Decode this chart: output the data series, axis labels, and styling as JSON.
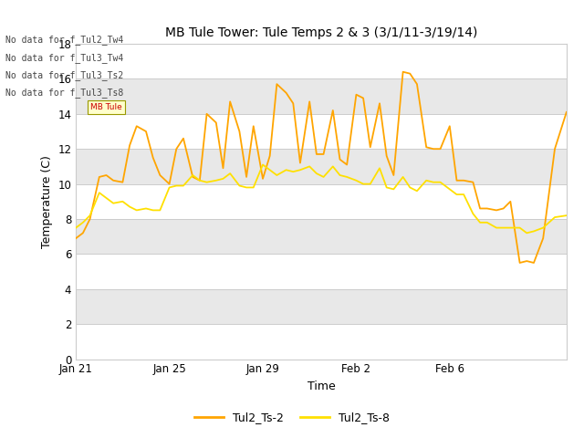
{
  "title": "MB Tule Tower: Tule Temps 2 & 3 (3/1/11-3/19/14)",
  "xlabel": "Time",
  "ylabel": "Temperature (C)",
  "ylim": [
    0,
    18
  ],
  "yticks": [
    0,
    2,
    4,
    6,
    8,
    10,
    12,
    14,
    16,
    18
  ],
  "background_color": "#ffffff",
  "plot_bg_light": "#f0f0f0",
  "plot_bg_dark": "#e0e0e0",
  "no_data_lines": [
    "No data for f_Tul2_Tw4",
    "No data for f_Tul3_Tw4",
    "No data for f_Tul3_Ts2",
    "No data for f_Tul3_Ts8"
  ],
  "legend_entries": [
    "Tul2_Ts-2",
    "Tul2_Ts-8"
  ],
  "line1_color": "#FFA500",
  "line2_color": "#FFE000",
  "xtick_labels": [
    "Jan 21",
    "Jan 25",
    "Jan 29",
    "Feb 2",
    "Feb 6"
  ],
  "xtick_positions": [
    0,
    4,
    8,
    12,
    16
  ],
  "xmax": 21,
  "ts2_x": [
    0,
    0.3,
    0.6,
    1.0,
    1.3,
    1.6,
    2.0,
    2.3,
    2.6,
    3.0,
    3.3,
    3.6,
    4.0,
    4.3,
    4.6,
    5.0,
    5.3,
    5.6,
    6.0,
    6.3,
    6.6,
    7.0,
    7.3,
    7.6,
    8.0,
    8.3,
    8.6,
    9.0,
    9.3,
    9.6,
    10.0,
    10.3,
    10.6,
    11.0,
    11.3,
    11.6,
    12.0,
    12.3,
    12.6,
    13.0,
    13.3,
    13.6,
    14.0,
    14.3,
    14.6,
    15.0,
    15.3,
    15.6,
    16.0,
    16.3,
    16.6,
    17.0,
    17.3,
    17.6,
    18.0,
    18.3,
    18.6,
    19.0,
    19.3,
    19.6,
    20.0,
    20.5,
    21.0
  ],
  "ts2_y": [
    6.9,
    7.2,
    8.0,
    10.4,
    10.5,
    10.2,
    10.1,
    12.2,
    13.3,
    13.0,
    11.5,
    10.5,
    10.0,
    12.0,
    12.6,
    10.4,
    10.2,
    14.0,
    13.5,
    10.9,
    14.7,
    13.0,
    10.4,
    13.3,
    10.3,
    11.6,
    15.7,
    15.2,
    14.6,
    11.2,
    14.7,
    11.7,
    11.7,
    14.2,
    11.4,
    11.1,
    15.1,
    14.9,
    12.1,
    14.6,
    11.6,
    10.5,
    16.4,
    16.3,
    15.7,
    12.1,
    12.0,
    12.0,
    13.3,
    10.2,
    10.2,
    10.1,
    8.6,
    8.6,
    8.5,
    8.6,
    9.0,
    5.5,
    5.6,
    5.5,
    6.9,
    12.0,
    14.1
  ],
  "ts8_x": [
    0,
    0.3,
    0.6,
    1.0,
    1.3,
    1.6,
    2.0,
    2.3,
    2.6,
    3.0,
    3.3,
    3.6,
    4.0,
    4.3,
    4.6,
    5.0,
    5.3,
    5.6,
    6.0,
    6.3,
    6.6,
    7.0,
    7.3,
    7.6,
    8.0,
    8.3,
    8.6,
    9.0,
    9.3,
    9.6,
    10.0,
    10.3,
    10.6,
    11.0,
    11.3,
    11.6,
    12.0,
    12.3,
    12.6,
    13.0,
    13.3,
    13.6,
    14.0,
    14.3,
    14.6,
    15.0,
    15.3,
    15.6,
    16.0,
    16.3,
    16.6,
    17.0,
    17.3,
    17.6,
    18.0,
    18.3,
    18.6,
    19.0,
    19.3,
    19.6,
    20.0,
    20.5,
    21.0
  ],
  "ts8_y": [
    7.5,
    7.8,
    8.2,
    9.5,
    9.2,
    8.9,
    9.0,
    8.7,
    8.5,
    8.6,
    8.5,
    8.5,
    9.8,
    9.9,
    9.9,
    10.5,
    10.2,
    10.1,
    10.2,
    10.3,
    10.6,
    9.9,
    9.8,
    9.8,
    11.1,
    10.8,
    10.5,
    10.8,
    10.7,
    10.8,
    11.0,
    10.6,
    10.4,
    11.0,
    10.5,
    10.4,
    10.2,
    10.0,
    10.0,
    10.9,
    9.8,
    9.7,
    10.4,
    9.8,
    9.6,
    10.2,
    10.1,
    10.1,
    9.7,
    9.4,
    9.4,
    8.3,
    7.8,
    7.8,
    7.5,
    7.5,
    7.5,
    7.5,
    7.2,
    7.3,
    7.5,
    8.1,
    8.2
  ]
}
